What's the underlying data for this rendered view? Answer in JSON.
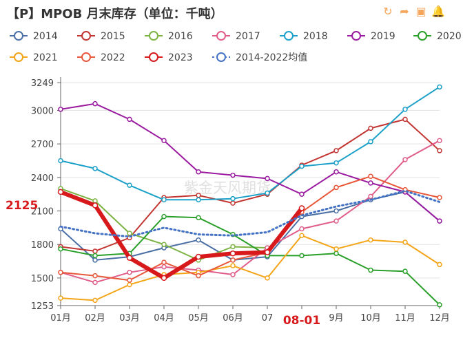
{
  "title": "【P】MPOB 月末库存（单位：千吨）",
  "toolbox": [
    {
      "name": "refresh-icon",
      "glyph": "↻"
    },
    {
      "name": "share-icon",
      "glyph": "➦"
    },
    {
      "name": "save-image-icon",
      "glyph": "▣"
    },
    {
      "name": "bell-icon",
      "glyph": "🔔"
    }
  ],
  "watermark": "紫金天风期货",
  "highlight": {
    "y_label": "2125",
    "x_label": "08-01",
    "color": "#d7191c"
  },
  "chart_data": {
    "type": "line",
    "title": "【P】MPOB 月末库存（单位：千吨）",
    "xlabel": "",
    "ylabel": "",
    "categories": [
      "01月",
      "02月",
      "03月",
      "04月",
      "05月",
      "06月",
      "07月",
      "08月",
      "09月",
      "10月",
      "11月",
      "12月"
    ],
    "ylim": [
      1253,
      3249
    ],
    "yticks": [
      1253,
      1500,
      1800,
      2100,
      2400,
      2700,
      3000,
      3249
    ],
    "ytick_labels": [
      "1253",
      "1500",
      "1800",
      "2100",
      "2400",
      "2700",
      "3000",
      "3249"
    ],
    "xtick_labels": [
      "01月",
      "02月",
      "03月",
      "04月",
      "05月",
      "06月",
      "07",
      "",
      "9月",
      "10月",
      "11月",
      "12月"
    ],
    "grid": true,
    "legend_position": "top",
    "series": [
      {
        "name": "2014",
        "color": "#4a6fa5",
        "values": [
          1940,
          1660,
          1690,
          1770,
          1840,
          1660,
          1690,
          2050,
          2100,
          2200,
          2270,
          2010
        ]
      },
      {
        "name": "2015",
        "color": "#c23531",
        "values": [
          1780,
          1740,
          1860,
          2220,
          2240,
          2170,
          2250,
          2510,
          2640,
          2840,
          2920,
          2640
        ]
      },
      {
        "name": "2016",
        "color": "#7cb342",
        "values": [
          2300,
          2190,
          1900,
          1800,
          1660,
          1780,
          1770,
          null,
          null,
          null,
          null,
          null
        ]
      },
      {
        "name": "2017",
        "color": "#e05c8a",
        "values": [
          1550,
          1460,
          1550,
          1600,
          1570,
          1530,
          1770,
          1940,
          2010,
          2230,
          2560,
          2730
        ]
      },
      {
        "name": "2018",
        "color": "#1ba1c9",
        "values": [
          2550,
          2480,
          2330,
          2200,
          2200,
          2210,
          2260,
          2500,
          2530,
          2720,
          3010,
          3210
        ]
      },
      {
        "name": "2019",
        "color": "#9a1aa0",
        "values": [
          3010,
          3060,
          2920,
          2730,
          2450,
          2420,
          2390,
          2250,
          2450,
          2350,
          2270,
          2010
        ]
      },
      {
        "name": "2020",
        "color": "#2aa02a",
        "values": [
          1760,
          1700,
          1720,
          2050,
          2040,
          1890,
          1700,
          1700,
          1720,
          1570,
          1560,
          1260
        ]
      },
      {
        "name": "2021",
        "color": "#f4a417",
        "values": [
          1320,
          1300,
          1440,
          1530,
          1550,
          1610,
          1500,
          1880,
          1760,
          1840,
          1820,
          1620
        ]
      },
      {
        "name": "2022",
        "color": "#e8573a",
        "values": [
          1550,
          1520,
          1480,
          1640,
          1520,
          1660,
          1730,
          2090,
          2310,
          2410,
          2290,
          2220
        ]
      },
      {
        "name": "2023",
        "color": "#d7191c",
        "emphasis": true,
        "values": [
          2270,
          2150,
          1680,
          1500,
          1690,
          1720,
          1730,
          2125,
          null,
          null,
          null,
          null
        ]
      },
      {
        "name": "2014-2022均值",
        "color": "#4472c4",
        "dashed": true,
        "values": [
          1960,
          1900,
          1870,
          1950,
          1890,
          1880,
          1910,
          2060,
          2140,
          2200,
          2280,
          2180
        ]
      }
    ]
  }
}
